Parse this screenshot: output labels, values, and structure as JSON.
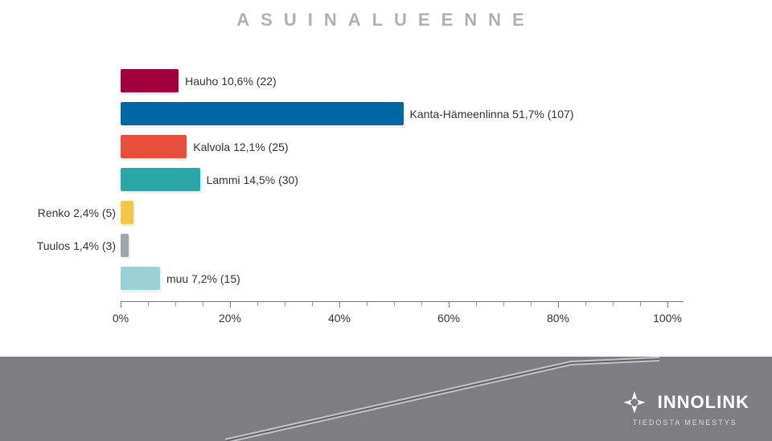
{
  "title": "ASUINALUEENNE",
  "chart": {
    "type": "bar",
    "orientation": "horizontal",
    "background_color": "#ffffff",
    "title_color": "#b0b0b0",
    "title_fontsize": 22,
    "label_fontsize": 14,
    "bar_height_ratio": 0.7,
    "xlim": [
      0,
      100
    ],
    "xticks_major": [
      0,
      20,
      40,
      60,
      80,
      100
    ],
    "xticks_minor_step": 5,
    "xtick_labels": [
      "0%",
      "20%",
      "40%",
      "60%",
      "80%",
      "100%"
    ],
    "axis_color": "#777777",
    "label_color": "#333333",
    "series": [
      {
        "label": "Hauho 10,6% (22)",
        "value": 10.6,
        "color": "#a0003b",
        "label_pos": "right"
      },
      {
        "label": "Kanta-Hämeenlinna 51,7% (107)",
        "value": 51.7,
        "color": "#0067a5",
        "label_pos": "right"
      },
      {
        "label": "Kalvola 12,1% (25)",
        "value": 12.1,
        "color": "#e84e3c",
        "label_pos": "right"
      },
      {
        "label": "Lammi 14,5% (30)",
        "value": 14.5,
        "color": "#2aa8a8",
        "label_pos": "right"
      },
      {
        "label": "Renko 2,4% (5)",
        "value": 2.4,
        "color": "#f5c54a",
        "label_pos": "left"
      },
      {
        "label": "Tuulos 1,4% (3)",
        "value": 1.4,
        "color": "#9ea7ad",
        "label_pos": "left"
      },
      {
        "label": "muu 7,2% (15)",
        "value": 7.2,
        "color": "#9ad0d6",
        "label_pos": "right"
      }
    ]
  },
  "footer": {
    "background_color": "#7d7d82",
    "brand_name": "INNOLINK",
    "brand_tagline": "TIEDOSTA MENESTYS",
    "brand_color": "#ffffff"
  }
}
